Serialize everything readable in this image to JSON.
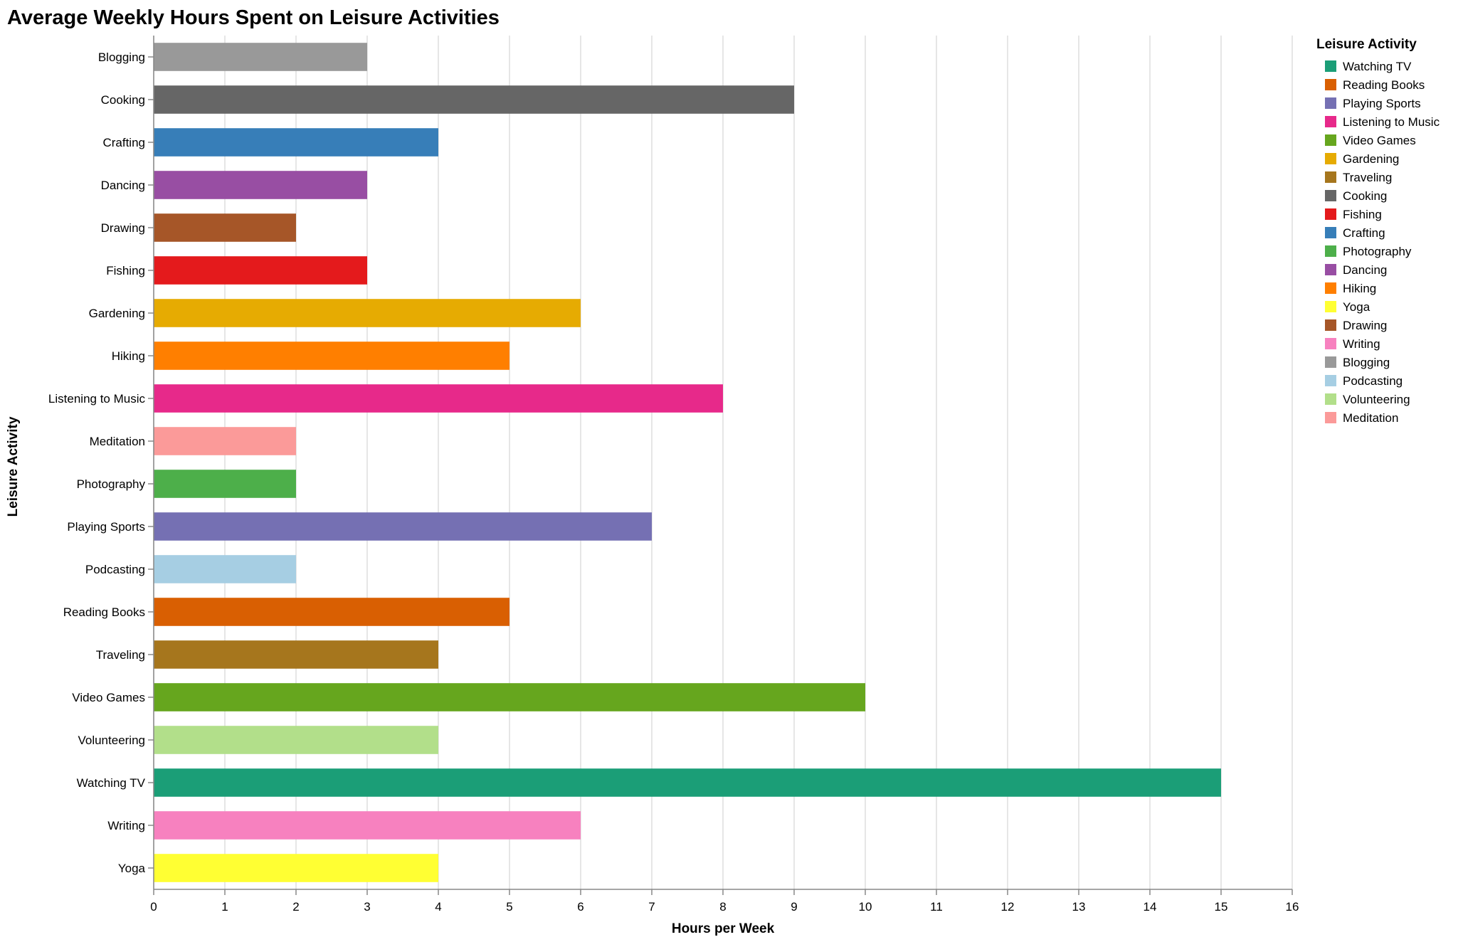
{
  "chart_data": {
    "type": "bar",
    "orientation": "horizontal",
    "title": "Average Weekly Hours Spent on Leisure Activities",
    "xlabel": "Hours per Week",
    "ylabel": "Leisure Activity",
    "xlim": [
      0,
      16
    ],
    "x_ticks": [
      0,
      1,
      2,
      3,
      4,
      5,
      6,
      7,
      8,
      9,
      10,
      11,
      12,
      13,
      14,
      15,
      16
    ],
    "grid": "vertical",
    "legend_title": "Leisure Activity",
    "legend_position": "right",
    "categories": [
      "Blogging",
      "Cooking",
      "Crafting",
      "Dancing",
      "Drawing",
      "Fishing",
      "Gardening",
      "Hiking",
      "Listening to Music",
      "Meditation",
      "Photography",
      "Playing Sports",
      "Podcasting",
      "Reading Books",
      "Traveling",
      "Video Games",
      "Volunteering",
      "Watching TV",
      "Writing",
      "Yoga"
    ],
    "values": [
      3,
      9,
      4,
      3,
      2,
      3,
      6,
      5,
      8,
      2,
      2,
      7,
      2,
      5,
      4,
      10,
      4,
      15,
      6,
      4
    ],
    "legend": [
      {
        "name": "Watching TV",
        "color": "#1b9e77"
      },
      {
        "name": "Reading Books",
        "color": "#d95f02"
      },
      {
        "name": "Playing Sports",
        "color": "#7570b3"
      },
      {
        "name": "Listening to Music",
        "color": "#e7298a"
      },
      {
        "name": "Video Games",
        "color": "#66a61e"
      },
      {
        "name": "Gardening",
        "color": "#e6ab02"
      },
      {
        "name": "Traveling",
        "color": "#a6761d"
      },
      {
        "name": "Cooking",
        "color": "#666666"
      },
      {
        "name": "Fishing",
        "color": "#e41a1c"
      },
      {
        "name": "Crafting",
        "color": "#377eb8"
      },
      {
        "name": "Photography",
        "color": "#4daf4a"
      },
      {
        "name": "Dancing",
        "color": "#984ea3"
      },
      {
        "name": "Hiking",
        "color": "#ff7f00"
      },
      {
        "name": "Yoga",
        "color": "#ffff33"
      },
      {
        "name": "Drawing",
        "color": "#a65628"
      },
      {
        "name": "Writing",
        "color": "#f781bf"
      },
      {
        "name": "Blogging",
        "color": "#999999"
      },
      {
        "name": "Podcasting",
        "color": "#a6cee3"
      },
      {
        "name": "Volunteering",
        "color": "#b2df8a"
      },
      {
        "name": "Meditation",
        "color": "#fb9a99"
      }
    ]
  }
}
